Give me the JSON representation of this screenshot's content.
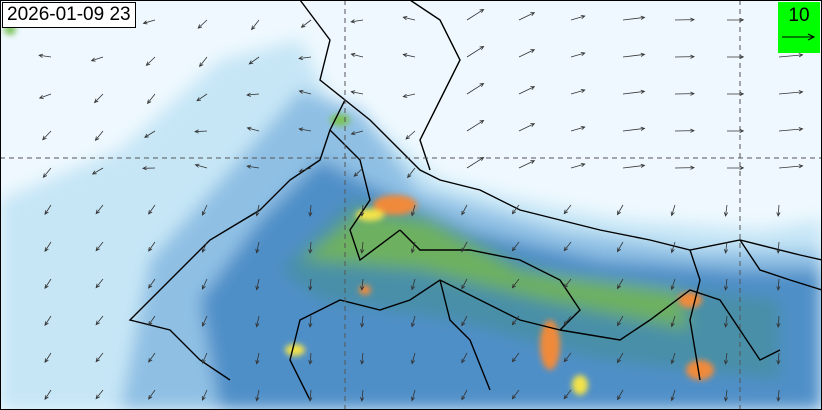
{
  "timestamp": "2026-01-09 23",
  "wind_legend": {
    "value": "10",
    "icon": "arrow-right-icon",
    "background": "#00ff00"
  },
  "colors": {
    "background": "#eef8fe",
    "low": "#c6e6f6",
    "mid": "#4f8fc8",
    "green": "#7bc35a",
    "yellow": "#f3e34a",
    "orange": "#f08a3a",
    "border": "#000000"
  }
}
